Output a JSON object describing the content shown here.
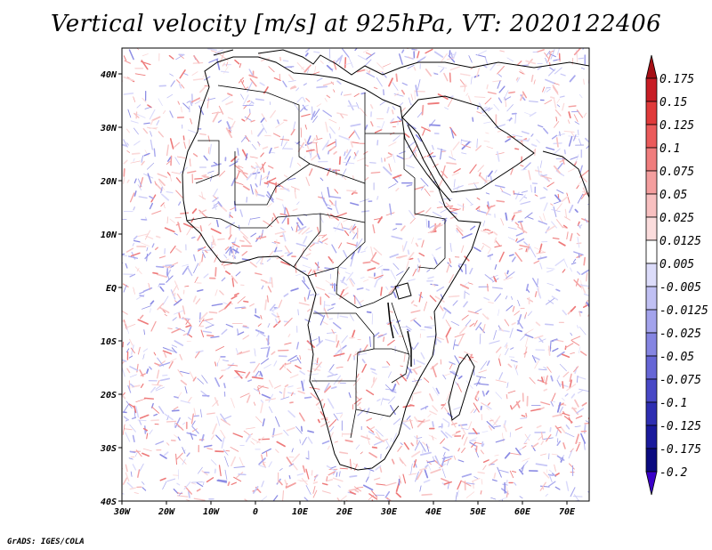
{
  "title": "Vertical velocity [m/s] at 925hPa, VT: 2020122406",
  "credit": "GrADS: IGES/COLA",
  "chart_data": {
    "type": "heatmap",
    "variable": "Vertical velocity",
    "units": "m/s",
    "level": "925hPa",
    "valid_time": "2020122406",
    "lon_range": [
      -30,
      75
    ],
    "lat_range": [
      -40,
      45
    ],
    "x_ticks": [
      "30W",
      "20W",
      "10W",
      "0",
      "10E",
      "20E",
      "30E",
      "40E",
      "50E",
      "60E",
      "70E"
    ],
    "y_ticks": [
      "40S",
      "30S",
      "20S",
      "10S",
      "EQ",
      "10N",
      "20N",
      "30N",
      "40N"
    ],
    "colorbar": {
      "labels": [
        "0.175",
        "0.15",
        "0.125",
        "0.1",
        "0.075",
        "0.05",
        "0.025",
        "0.0125",
        "0.005",
        "-0.005",
        "-0.0125",
        "-0.025",
        "-0.05",
        "-0.075",
        "-0.1",
        "-0.125",
        "-0.175",
        "-0.2"
      ],
      "colors": [
        "#a50f15",
        "#c81d25",
        "#e03a3a",
        "#eb5b5b",
        "#f07d7d",
        "#f49e9e",
        "#f8c0c0",
        "#fbdcdc",
        "#ffffff",
        "#dcdcfa",
        "#c0c0f3",
        "#a3a3ec",
        "#8585e2",
        "#6666d6",
        "#4848c6",
        "#2e2eb2",
        "#1a1a9c",
        "#0a0a80",
        "#3a00c8"
      ]
    }
  }
}
